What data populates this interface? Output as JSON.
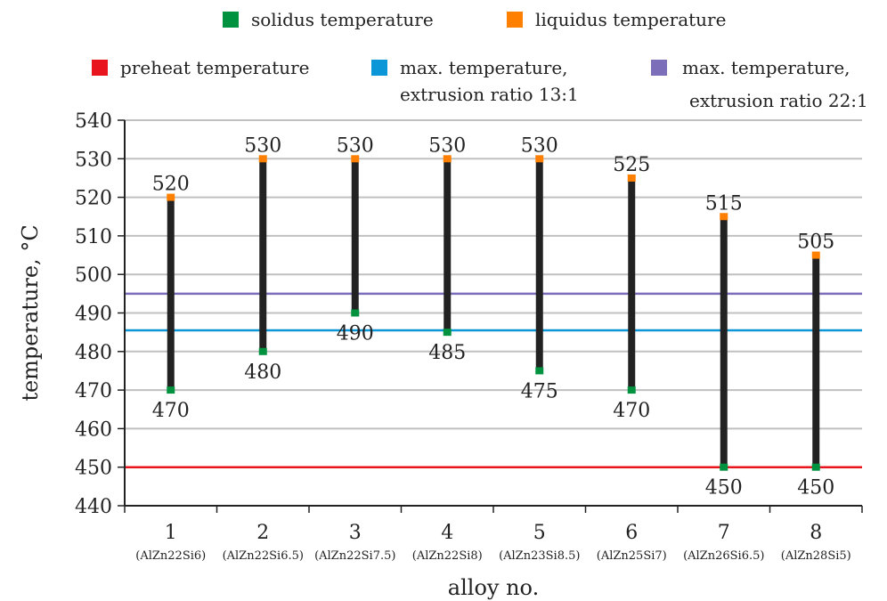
{
  "chart_data": {
    "type": "range-bar",
    "xlabel": "alloy no.",
    "ylabel": "temperature, °C",
    "ylim": [
      440,
      540
    ],
    "yticks": [
      440,
      450,
      460,
      470,
      480,
      490,
      500,
      510,
      520,
      530,
      540
    ],
    "grid": true,
    "categories": [
      "1",
      "2",
      "3",
      "4",
      "5",
      "6",
      "7",
      "8"
    ],
    "category_sublabels": [
      "(AlZn22Si6)",
      "(AlZn22Si6.5)",
      "(AlZn22Si7.5)",
      "(AlZn22Si8)",
      "(AlZn23Si8.5)",
      "(AlZn25Si7)",
      "(AlZn26Si6.5)",
      "(AlZn28Si5)"
    ],
    "series": [
      {
        "name": "solidus temperature",
        "color": "#00923f",
        "values": [
          470,
          480,
          490,
          485,
          475,
          470,
          450,
          450
        ]
      },
      {
        "name": "liquidus temperature",
        "color": "#ff8000",
        "values": [
          520,
          530,
          530,
          530,
          530,
          525,
          515,
          505
        ]
      }
    ],
    "reference_lines": [
      {
        "name": "preheat temperature",
        "color": "#e8141e",
        "value": 450
      },
      {
        "name": "max. temperature, extrusion ratio 13:1",
        "name_lines": [
          "max. temperature,",
          "extrusion ratio 13:1"
        ],
        "color": "#0a96d7",
        "value": 485.5
      },
      {
        "name": "max. temperature, extrusion ratio 22:1",
        "name_lines": [
          "max. temperature,",
          "extrusion ratio 22:1"
        ],
        "color": "#7d6eb9",
        "value": 495
      }
    ],
    "range_bar_color": "#222222",
    "legend_position": "top"
  }
}
